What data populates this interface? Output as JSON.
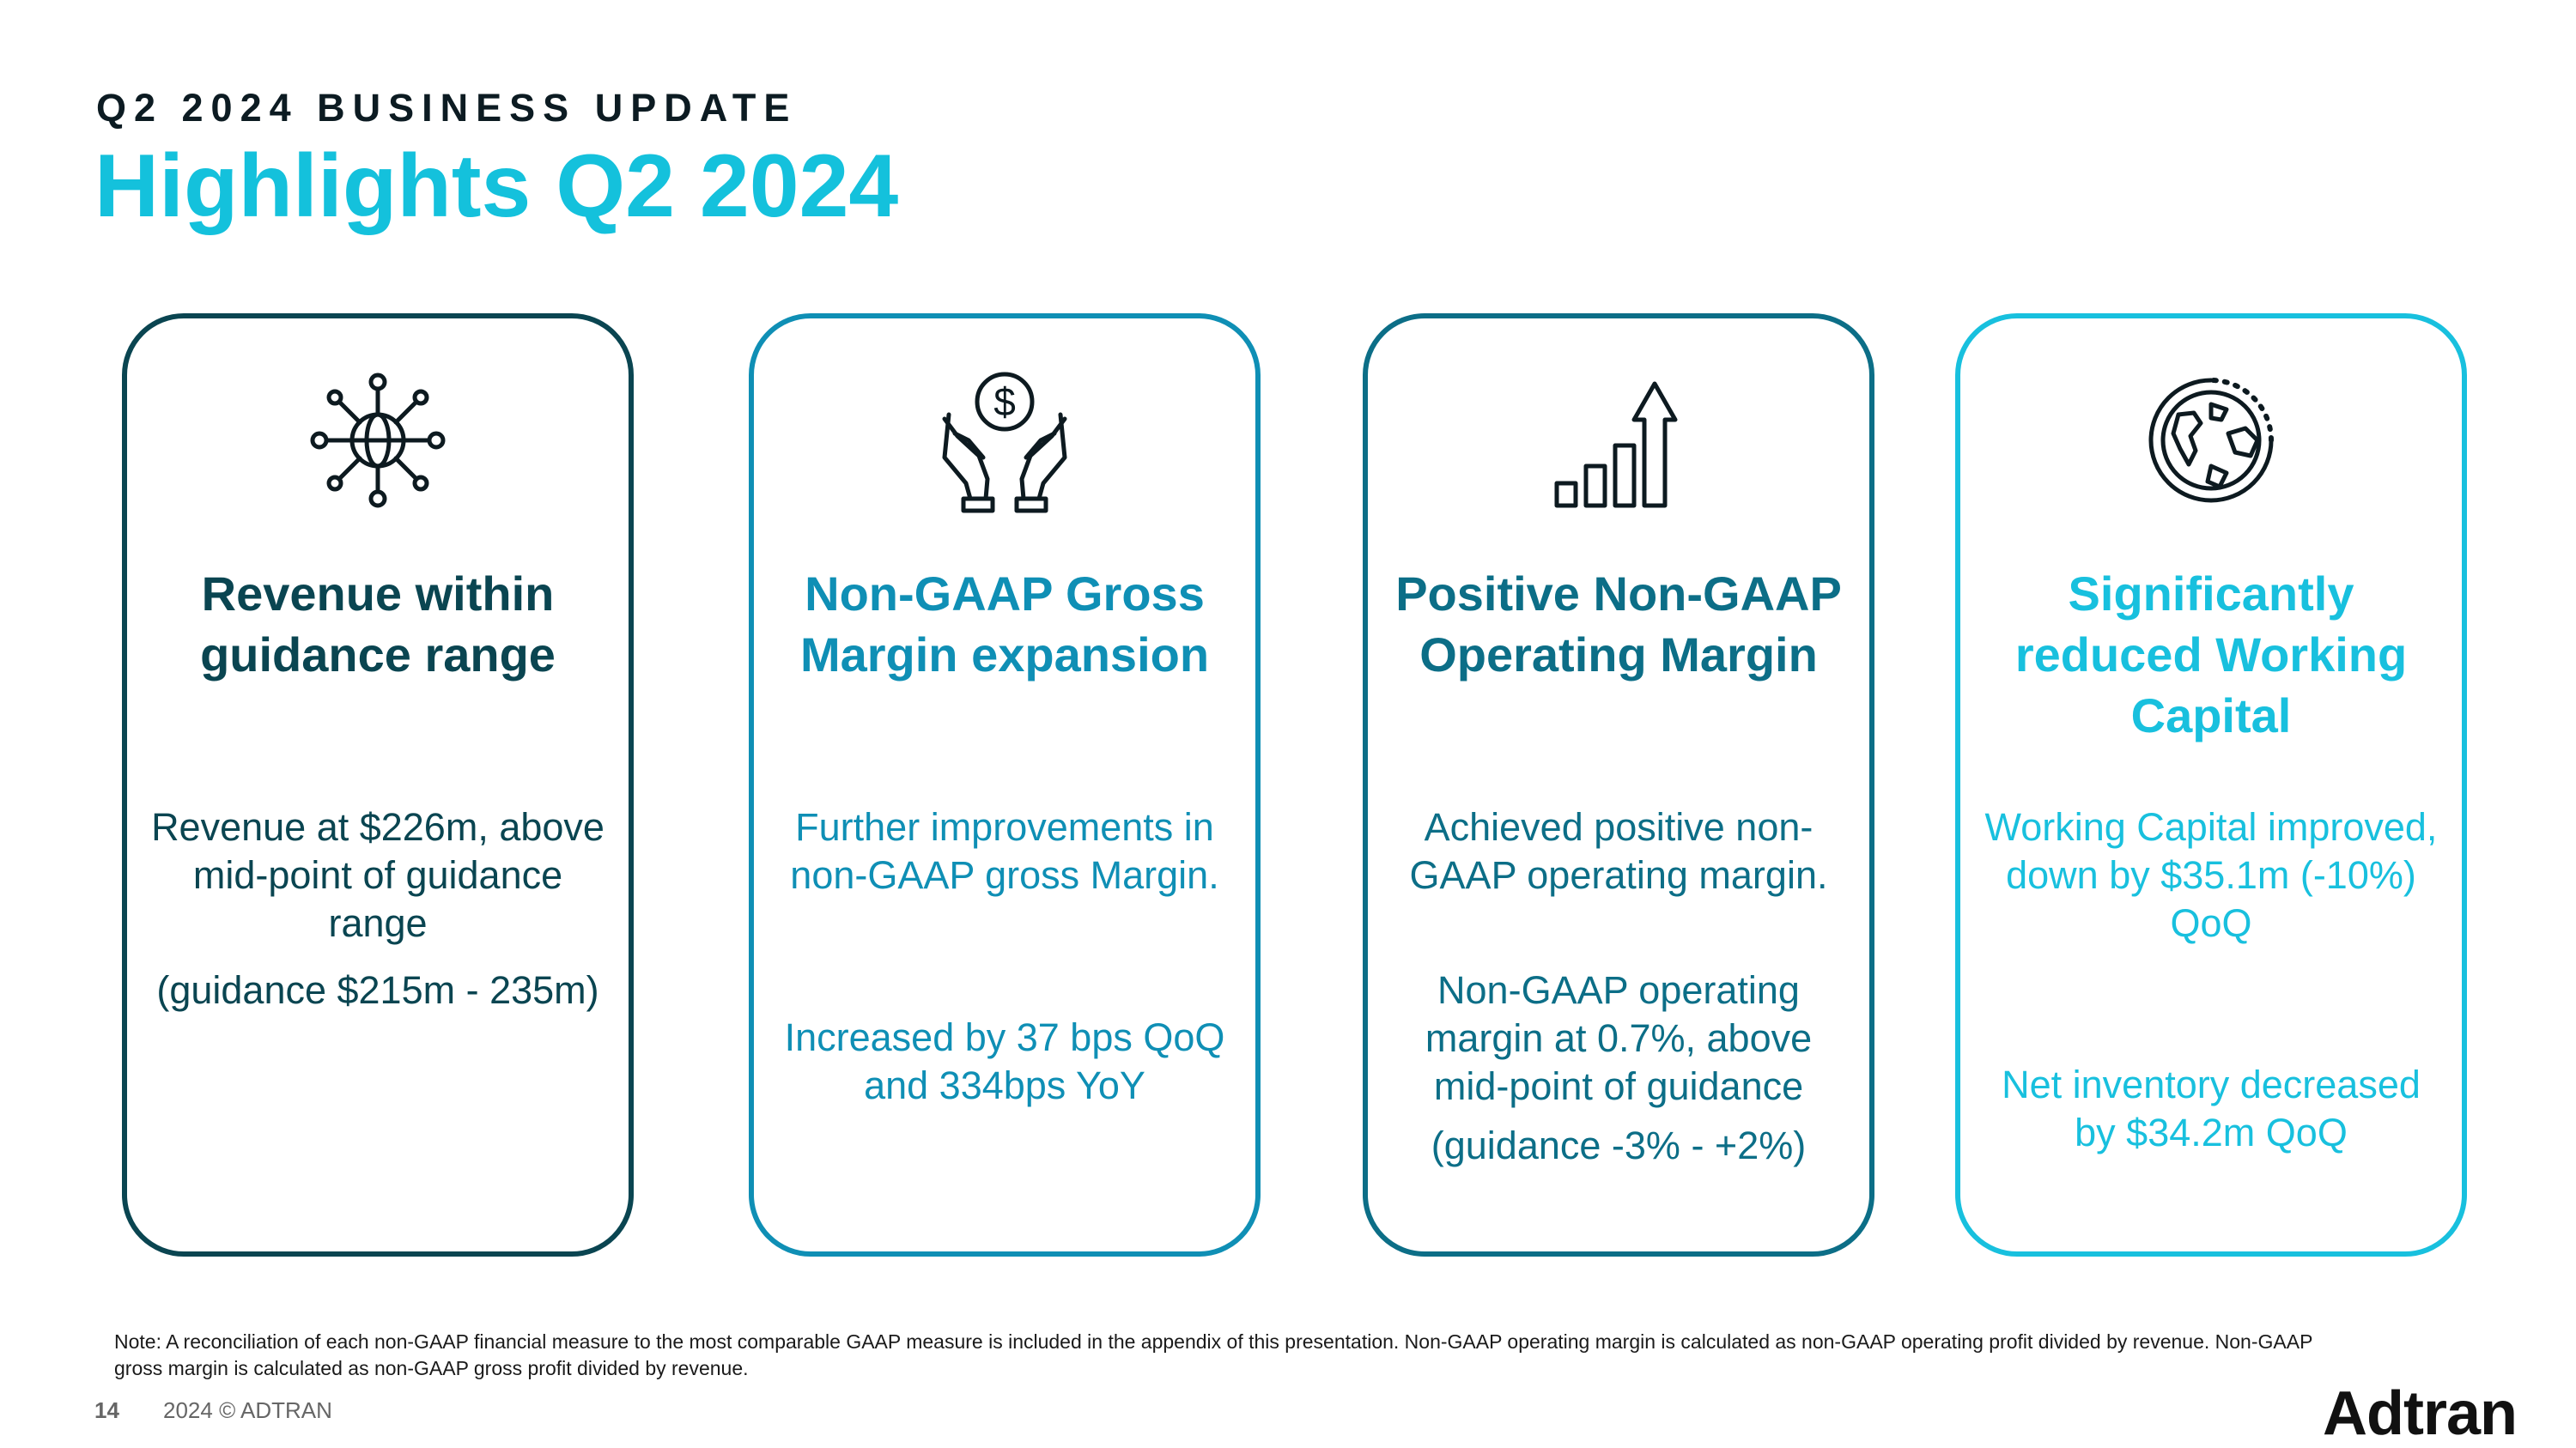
{
  "header": {
    "eyebrow": "Q2 2024 BUSINESS UPDATE",
    "title": "Highlights Q2 2024"
  },
  "cards": [
    {
      "icon": "globe-network-icon",
      "heading": "Revenue within guidance range",
      "para1": "Revenue at $226m, above mid-point of guidance range",
      "para2": "(guidance  $215m - 235m)",
      "color": "#0a4551"
    },
    {
      "icon": "hands-dollar-icon",
      "heading": "Non-GAAP Gross Margin expansion",
      "para1": "Further improvements in non-GAAP gross Margin.",
      "para2": "Increased by 37 bps QoQ and 334bps YoY",
      "color": "#0f8fb5"
    },
    {
      "icon": "bar-chart-arrow-icon",
      "heading": "Positive Non-GAAP Operating Margin",
      "para1": "Achieved positive non-GAAP operating margin.",
      "para2": "Non-GAAP operating margin at 0.7%, above mid-point of guidance",
      "para3": "(guidance -3% - +2%)",
      "color": "#0c6e87"
    },
    {
      "icon": "globe-orbit-icon",
      "heading": "Significantly reduced Working Capital",
      "para1": "Working Capital improved, down by $35.1m (-10%) QoQ",
      "para2": "Net inventory decreased by $34.2m QoQ",
      "color": "#18c0de"
    }
  ],
  "footer": {
    "note": "Note: A reconciliation of each non-GAAP financial measure to the most comparable GAAP measure is included in the appendix of this presentation. Non-GAAP operating margin is calculated as non-GAAP operating profit divided by revenue. Non-GAAP gross margin is calculated as non-GAAP gross profit divided by revenue.",
    "page_number": "14",
    "copyright": "2024 © ADTRAN",
    "logo_text": "Adtran"
  }
}
